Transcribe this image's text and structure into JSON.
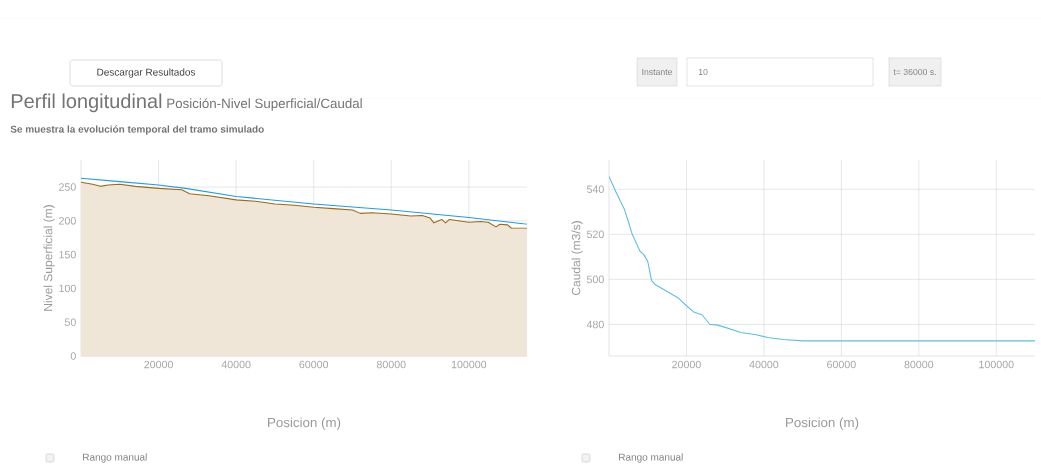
{
  "chart_data": [
    {
      "type": "area",
      "title": "Perfil longitudinal",
      "subtitle": "Posición-Nivel Superficial/Caudal",
      "xlabel": "Posicion (m)",
      "ylabel": "Nivel Superficial (m)",
      "annotations": [
        "Se muestra la evolución temporal del tramo simulado",
        "Descargar Resultados",
        "Rango manual"
      ],
      "xlim": [
        0,
        115000
      ],
      "ylim": [
        0,
        290
      ],
      "xticks": [
        20000,
        40000,
        60000,
        80000,
        100000
      ],
      "yticks": [
        0,
        50,
        100,
        150,
        200,
        250
      ],
      "grid": true,
      "series": [
        {
          "color": "#efe6d8",
          "x": [
            0,
            3000,
            5000,
            7000,
            10000,
            14000,
            20000,
            26000,
            28000,
            33000,
            40000,
            45000,
            50000,
            55000,
            60000,
            65000,
            70000,
            72000,
            75000,
            80000,
            85000,
            88000,
            90000,
            91000,
            93000,
            94000,
            95000,
            100000,
            103000,
            105000,
            107000,
            108000,
            110000,
            111000,
            115000
          ],
          "values": [
            257,
            254,
            251,
            253,
            254,
            251,
            248,
            246,
            240,
            237,
            231,
            229,
            225,
            223,
            220,
            218,
            216,
            211,
            212,
            210,
            207,
            208,
            204,
            197,
            202,
            197,
            202,
            198,
            199,
            198,
            191,
            195,
            194,
            189,
            189
          ]
        },
        {
          "type": "line",
          "color": "#1a9cf0",
          "x": [
            0,
            10000,
            20000,
            27000,
            40000,
            60000,
            80000,
            100000,
            115000
          ],
          "values": [
            263,
            258,
            253,
            248,
            236,
            225,
            216,
            205,
            195
          ]
        }
      ]
    },
    {
      "type": "line",
      "xlabel": "Posicion (m)",
      "ylabel": "Caudal (m3/s)",
      "annotations": [
        "Instante",
        "10",
        "t= 36000 s.",
        "Rango manual"
      ],
      "xlim": [
        0,
        110000
      ],
      "ylim": [
        466,
        553
      ],
      "xticks": [
        20000,
        40000,
        60000,
        80000,
        100000
      ],
      "yticks": [
        480,
        500,
        520,
        540
      ],
      "grid": true,
      "series": [
        {
          "color": "#5bc0de",
          "x": [
            0,
            2000,
            4000,
            5000,
            6000,
            8000,
            9000,
            10000,
            11000,
            12000,
            15000,
            18000,
            20000,
            22000,
            24000,
            26000,
            28000,
            30000,
            34000,
            38000,
            41000,
            45000,
            50000,
            110000
          ],
          "values": [
            545.7,
            538,
            531,
            525.6,
            520,
            512.5,
            511,
            508,
            499.5,
            497.6,
            494.6,
            491.6,
            488.3,
            485.4,
            484.3,
            480.1,
            479.7,
            478.7,
            476.4,
            475.4,
            474.2,
            473.3,
            472.7,
            472.7
          ]
        }
      ]
    }
  ]
}
